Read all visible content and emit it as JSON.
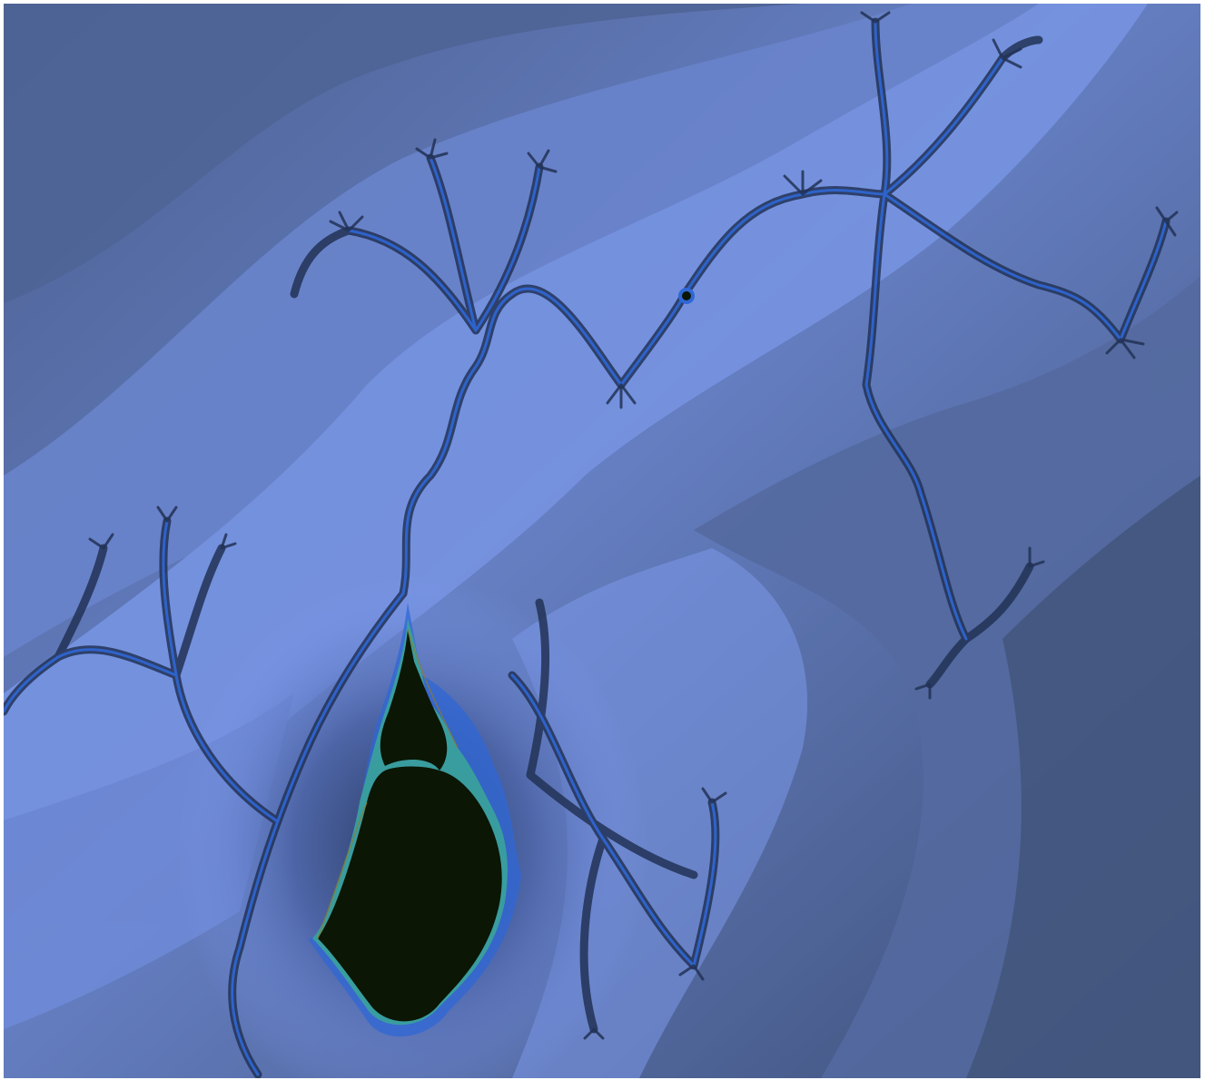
{
  "image": {
    "subject": "mandelbrot-set-zoom",
    "colors": {
      "background_dark": "#3f5179",
      "background_mid": "#5f77b4",
      "background_light": "#7f9bf2",
      "filament_dark": "#223256",
      "filament_accent": "#2f67d6",
      "set_interior": "#0b1604",
      "set_edge": "#3aa39a",
      "set_edge_gold": "#8f7a2c"
    }
  }
}
